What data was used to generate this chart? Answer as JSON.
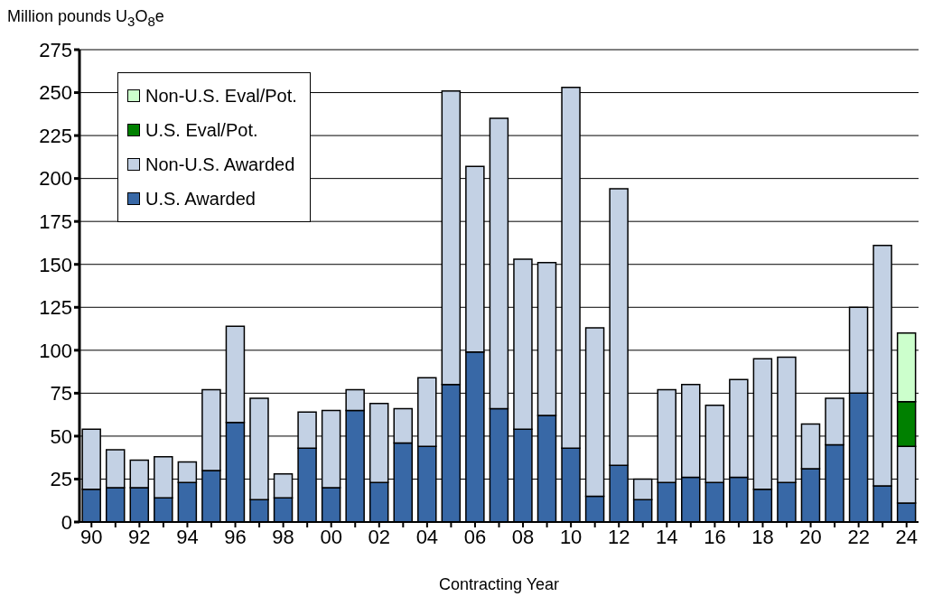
{
  "chart_data": {
    "type": "bar",
    "ylabel": "Million pounds U$_{3}$O$_{8}$e",
    "xlabel": "Contracting Year",
    "categories": [
      "90",
      null,
      "92",
      null,
      "94",
      null,
      "96",
      null,
      "98",
      null,
      "00",
      null,
      "02",
      null,
      "04",
      null,
      "06",
      null,
      "08",
      null,
      "10",
      null,
      "12",
      null,
      "14",
      null,
      "16",
      null,
      "18",
      null,
      "20",
      null,
      "22",
      null,
      "24"
    ],
    "series": [
      {
        "name": "U.S. Awarded",
        "color": "#3868a6",
        "values": [
          19,
          20,
          20,
          14,
          23,
          30,
          58,
          13,
          14,
          43,
          20,
          65,
          23,
          46,
          44,
          80,
          99,
          66,
          54,
          62,
          43,
          15,
          33,
          13,
          23,
          26,
          23,
          26,
          19,
          23,
          31,
          45,
          75,
          21,
          11
        ]
      },
      {
        "name": "Non-U.S. Awarded",
        "color": "#c3d1e4",
        "values": [
          35,
          22,
          16,
          24,
          12,
          47,
          56,
          59,
          14,
          21,
          45,
          12,
          46,
          20,
          40,
          171,
          108,
          169,
          99,
          89,
          210,
          98,
          161,
          12,
          54,
          54,
          45,
          57,
          76,
          73,
          26,
          27,
          50,
          140,
          33
        ]
      },
      {
        "name": "U.S. Eval/Pot.",
        "color": "#008000",
        "values": [
          null,
          null,
          null,
          null,
          null,
          null,
          null,
          null,
          null,
          null,
          null,
          null,
          null,
          null,
          null,
          null,
          null,
          null,
          null,
          null,
          null,
          null,
          null,
          null,
          null,
          null,
          null,
          null,
          null,
          null,
          null,
          null,
          null,
          null,
          26
        ]
      },
      {
        "name": "Non-U.S. Eval/Pot.",
        "color": "#ccffcc",
        "values": [
          null,
          null,
          null,
          null,
          null,
          null,
          null,
          null,
          null,
          null,
          null,
          null,
          null,
          null,
          null,
          null,
          null,
          null,
          null,
          null,
          null,
          null,
          null,
          null,
          null,
          null,
          null,
          null,
          null,
          null,
          null,
          null,
          null,
          null,
          40
        ]
      }
    ],
    "stacked": true,
    "ylim": [
      0,
      275
    ],
    "yticks": [
      0,
      25,
      50,
      75,
      100,
      125,
      150,
      175,
      200,
      225,
      250,
      275
    ],
    "grid": "y",
    "legend": "top left"
  }
}
